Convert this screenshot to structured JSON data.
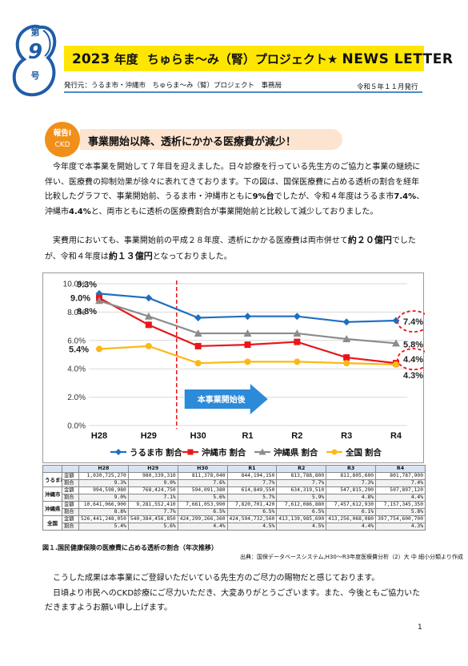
{
  "header": {
    "issue_prefix": "第",
    "issue_number": "9",
    "issue_suffix": "号",
    "title_year": "2023",
    "title_nendo": "年度",
    "title_main": "ちゅらま～み（腎）プロジェクト★",
    "title_en": "NEWS LETTER",
    "publisher": "発行元：うるま市・沖縄市　ちゅらま～み（腎）プロジェクト　事務局",
    "issue_date": "令和５年１１月発行",
    "accent_color": "#ffe600",
    "rule_color": "#4f8bc9"
  },
  "report": {
    "badge_line1": "報告Ⅰ",
    "badge_line2": "CKD",
    "heading": "事業開始以降、透析にかかる医療費が減少！",
    "badge_color": "#f08f1a"
  },
  "body": {
    "p1_a": "　今年度で本事業を開始して７年目を迎えました。日々診療を行っている先生方のご協力と事業の継続に伴い、医療費の抑制効果が徐々に表れてきております。下の図は、国保医療費に占める透析の割合を経年比較したグラフで、事業開始前、うるま市・沖縄市ともに",
    "p1_b": "9%台",
    "p1_c": "でしたが、令和４年度はうるま市",
    "p1_d": "7.4%",
    "p1_e": "、沖縄市",
    "p1_f": "4.4%",
    "p1_g": "と、両市ともに透析の医療費割合が事業開始前と比較して減少しておりました。",
    "p2_a": "　実費用においても、事業開始前の平成２８年度、透析にかかる医療費は両市併せて",
    "p2_b": "約２０億円",
    "p2_c": "でしたが、令和４年度は",
    "p2_d": "約１３億円",
    "p2_e": "となっておりました。",
    "p3": "　こうした成果は本事業にご登録いただいている先生方のご尽力の賜物だと感じております。\n　日頃より市民へのCKD診療にご尽力いただき、大変ありがとうございます。また、今後ともご協力いただきますようお願い申し上げます。"
  },
  "chart_data": {
    "type": "line",
    "categories": [
      "H28",
      "H29",
      "H30",
      "R1",
      "R2",
      "R3",
      "R4"
    ],
    "series": [
      {
        "name": "うるま市 割合",
        "values": [
          9.3,
          9.0,
          7.6,
          7.7,
          7.7,
          7.3,
          7.4
        ],
        "color": "#1f6fc0",
        "marker": "diamond"
      },
      {
        "name": "沖縄市 割合",
        "values": [
          9.0,
          7.1,
          5.6,
          5.7,
          5.9,
          4.8,
          4.4
        ],
        "color": "#e8161b",
        "marker": "square"
      },
      {
        "name": "沖縄県 割合",
        "values": [
          8.8,
          7.7,
          6.5,
          6.5,
          6.5,
          6.1,
          5.8
        ],
        "color": "#8c8c8c",
        "marker": "triangle"
      },
      {
        "name": "全国 割合",
        "values": [
          5.4,
          5.6,
          4.4,
          4.5,
          4.5,
          4.4,
          4.3
        ],
        "color": "#fbb817",
        "marker": "circle"
      }
    ],
    "yticks": [
      "0.0%",
      "2.0%",
      "4.0%",
      "6.0%",
      "8.0%",
      "10.0%"
    ],
    "ylim": [
      0,
      10
    ],
    "annotations": {
      "h28_uruma": "9.3%",
      "h28_okinawa": "9.0%",
      "h28_pref": "8.8%",
      "h28_national": "5.4%",
      "r4_uruma": "7.4%",
      "r4_pref": "5.8%",
      "r4_okinawa": "4.4%",
      "r4_national": "4.3%",
      "start_arrow": "本事業開始後"
    },
    "grid": true,
    "legend_position": "bottom"
  },
  "table": {
    "years": [
      "H28",
      "H29",
      "H30",
      "R1",
      "R2",
      "R3",
      "R4"
    ],
    "rows": [
      {
        "region": "うるま市",
        "amount_label": "金額",
        "share_label": "割合",
        "amounts": [
          "1,030,725,270",
          "980,339,310",
          "811,378,040",
          "844,194,150",
          "813,788,800",
          "811,805,600",
          "801,787,900"
        ],
        "shares": [
          "9.3%",
          "9.0%",
          "7.6%",
          "7.7%",
          "7.7%",
          "7.3%",
          "7.4%"
        ]
      },
      {
        "region": "沖縄市",
        "amount_label": "金額",
        "share_label": "割合",
        "amounts": [
          "994,598,980",
          "768,424,750",
          "594,091,380",
          "614,849,550",
          "634,319,510",
          "547,815,290",
          "507,897,120"
        ],
        "shares": [
          "9.0%",
          "7.1%",
          "5.6%",
          "5.7%",
          "5.9%",
          "4.8%",
          "4.4%"
        ]
      },
      {
        "region": "沖縄県",
        "amount_label": "金額",
        "share_label": "割合",
        "amounts": [
          "10,641,066,900",
          "9,281,552,410",
          "7,661,053,990",
          "7,820,701,420",
          "7,612,086,880",
          "7,457,612,930",
          "7,157,345,350"
        ],
        "shares": [
          "8.8%",
          "7.7%",
          "6.5%",
          "6.5%",
          "6.5%",
          "6.1%",
          "5.8%"
        ]
      },
      {
        "region": "全国",
        "amount_label": "金額",
        "share_label": "割合",
        "amounts": [
          "526,441,248,050",
          "540,384,456,850",
          "424,299,266,360",
          "424,594,732,560",
          "413,139,985,690",
          "413,256,068,080",
          "397,754,600,700"
        ],
        "shares": [
          "5.4%",
          "5.6%",
          "4.4%",
          "4.5%",
          "4.5%",
          "4.4%",
          "4.3%"
        ]
      }
    ]
  },
  "figure": {
    "caption": "図１.国民健康保険の医療費に占める透析の割合（年次推移）",
    "source": "出典：国保データベースシステム,H30～R3年度医療費分析（2）大 中 細小分類より作成"
  },
  "page_number": "1"
}
